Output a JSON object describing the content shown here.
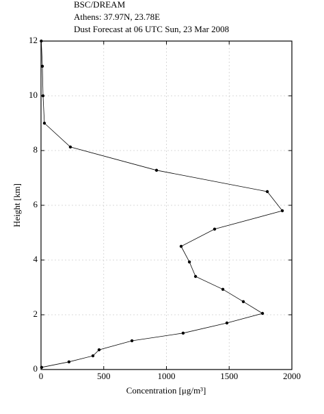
{
  "chart_data": {
    "type": "line",
    "title": "BSC/DREAM",
    "subtitle": [
      "Athens: 37.97N, 23.78E",
      "Dust Forecast at 06 UTC Sun, 23 Mar 2008"
    ],
    "x_label": "Concentration [μg/m³]",
    "y_label": "Height [km]",
    "x": [
      5,
      223,
      414,
      463,
      725,
      1133,
      1482,
      1766,
      1613,
      1450,
      1232,
      1183,
      1117,
      1384,
      1924,
      1804,
      921,
      234,
      27,
      16,
      11,
      2
    ],
    "values": [
      0.08,
      0.28,
      0.5,
      0.72,
      1.05,
      1.33,
      1.7,
      2.05,
      2.48,
      2.93,
      3.4,
      3.93,
      4.5,
      5.13,
      5.8,
      6.5,
      7.28,
      8.13,
      9.0,
      10.0,
      11.08,
      12
    ],
    "color": "#000000",
    "xlim": [
      0,
      2000
    ],
    "xticks": [
      0,
      500,
      1000,
      1500,
      2000
    ],
    "ylim": [
      0,
      12
    ],
    "yticks": [
      0,
      2,
      4,
      6,
      8,
      10,
      12
    ],
    "grid": true
  }
}
